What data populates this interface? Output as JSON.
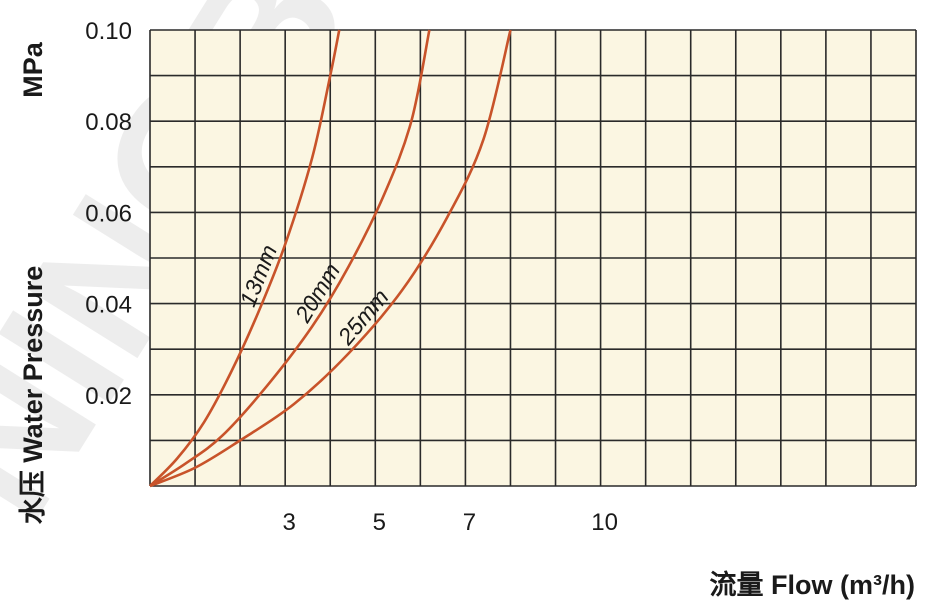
{
  "chart_data": {
    "type": "line",
    "xlabel": "流量 Flow (m³/h)",
    "ylabel_unit": "MPa",
    "ylabel": "水压 Water Pressure",
    "x_ticks": [
      "3",
      "5",
      "7",
      "10"
    ],
    "x_tick_values": [
      3,
      5,
      7,
      10
    ],
    "y_ticks": [
      "0.10",
      "0.08",
      "0.06",
      "0.04",
      "0.02"
    ],
    "y_tick_values": [
      0.1,
      0.08,
      0.06,
      0.04,
      0.02
    ],
    "xlim": [
      0,
      17
    ],
    "ylim": [
      0,
      0.1
    ],
    "grid": true,
    "background_color": "#fbf6e2",
    "grid_color": "#2a2a2a",
    "line_color": "#c8532a",
    "series": [
      {
        "name": "13mm",
        "x": [
          0,
          0.6,
          1.2,
          1.8,
          2.4,
          3.0,
          3.6,
          4.0,
          4.2
        ],
        "y": [
          0,
          0.006,
          0.014,
          0.025,
          0.038,
          0.053,
          0.072,
          0.09,
          0.1
        ]
      },
      {
        "name": "20mm",
        "x": [
          0,
          0.8,
          1.6,
          2.6,
          3.6,
          4.4,
          5.2,
          5.8,
          6.2
        ],
        "y": [
          0,
          0.005,
          0.011,
          0.022,
          0.035,
          0.048,
          0.064,
          0.08,
          0.1
        ]
      },
      {
        "name": "25mm",
        "x": [
          0,
          1.0,
          2.0,
          3.2,
          4.4,
          5.6,
          6.6,
          7.4,
          8.0
        ],
        "y": [
          0,
          0.004,
          0.01,
          0.018,
          0.029,
          0.043,
          0.059,
          0.076,
          0.1
        ]
      }
    ],
    "watermark": "NINGBO"
  }
}
